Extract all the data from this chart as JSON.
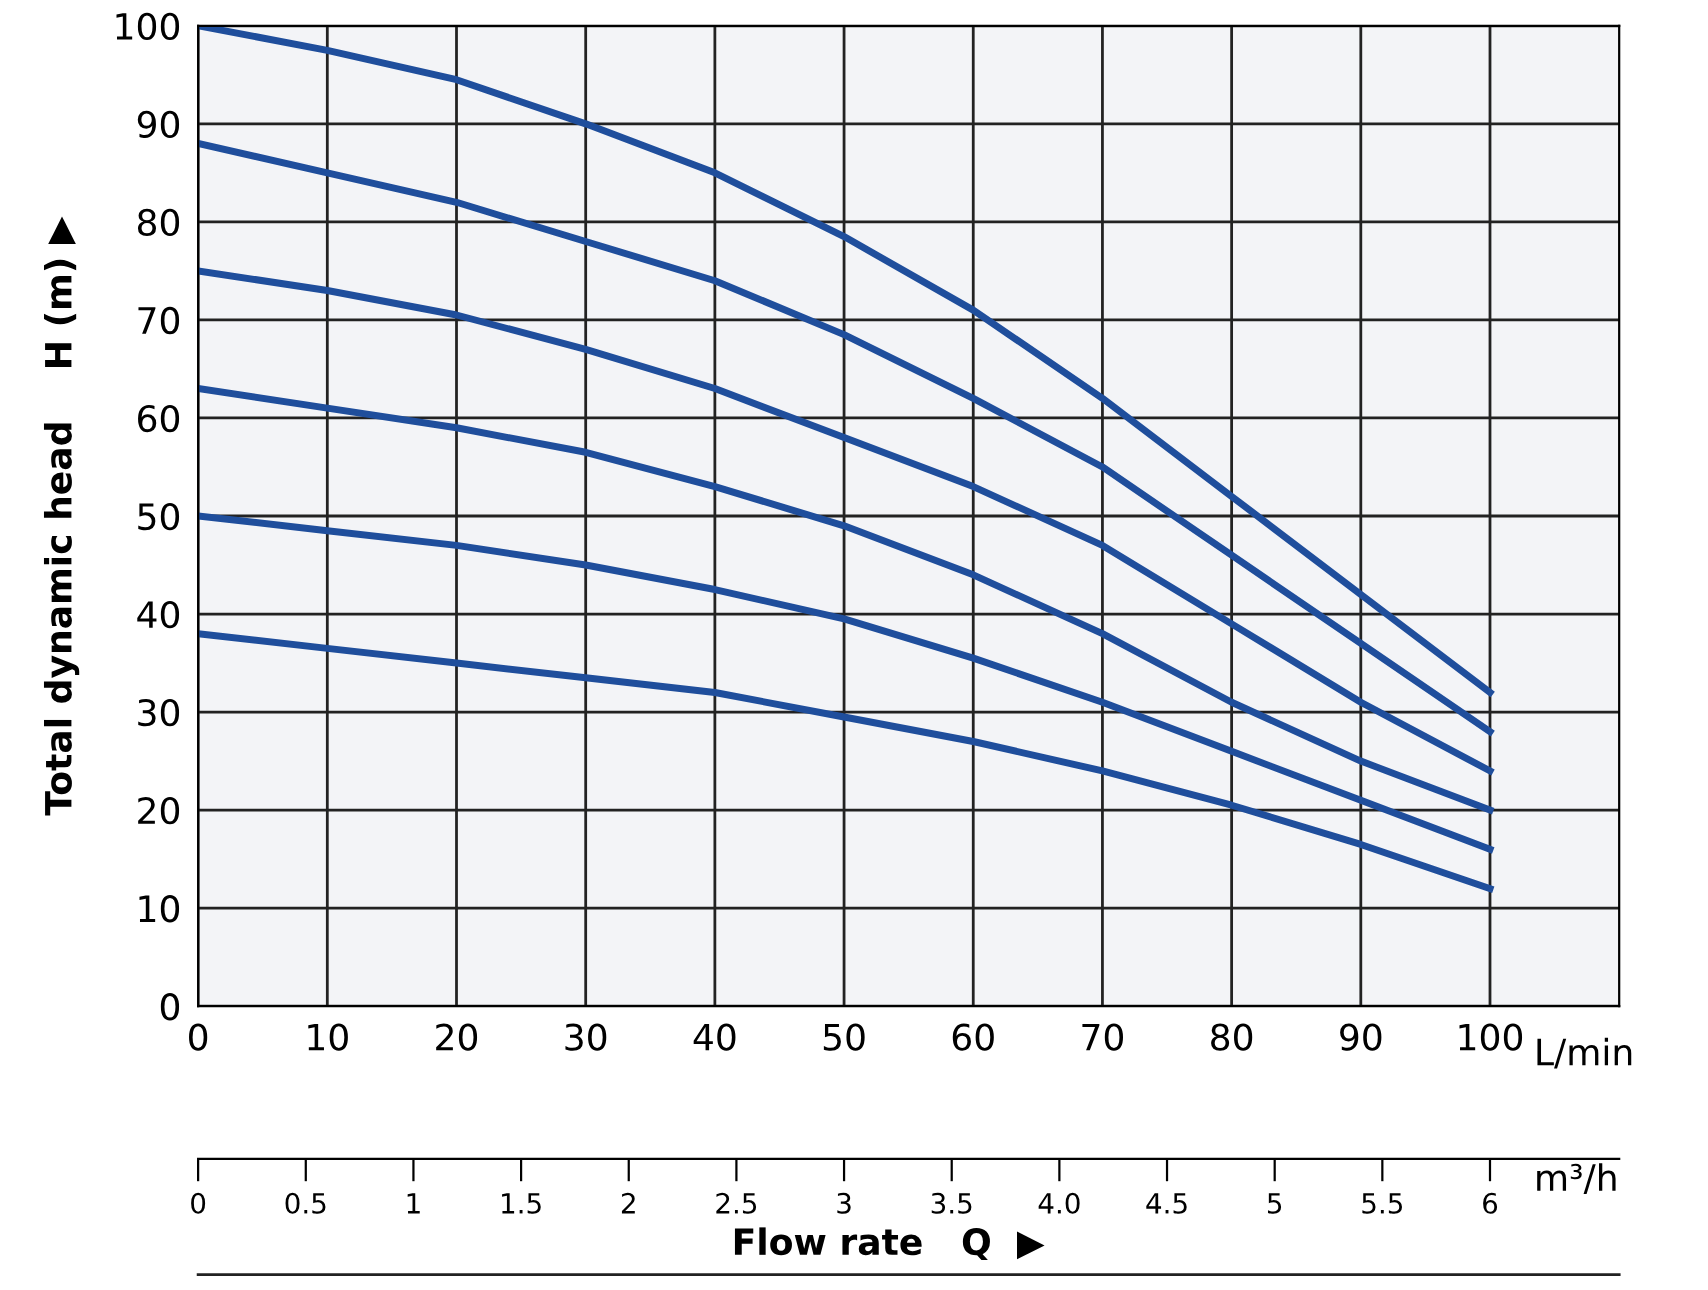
{
  "chart_data": {
    "type": "line",
    "xlabel": "L/min",
    "ylabel": "Total dynamic head    H (m) ▶",
    "x2label": "m³/h",
    "annotations": [
      "Flow rate   Q  ▶"
    ],
    "x": [
      0,
      10,
      20,
      30,
      40,
      50,
      60,
      70,
      80,
      90,
      100
    ],
    "series": [
      {
        "color": "#1f4e9c",
        "values": [
          100,
          97.5,
          94.5,
          90,
          85,
          78.5,
          71,
          62,
          52,
          42,
          32
        ]
      },
      {
        "color": "#1f4e9c",
        "values": [
          88,
          85,
          82,
          78,
          74,
          68.5,
          62,
          55,
          46,
          37,
          28
        ]
      },
      {
        "color": "#1f4e9c",
        "values": [
          75,
          73,
          70.5,
          67,
          63,
          58,
          53,
          47,
          39,
          31,
          24
        ]
      },
      {
        "color": "#1f4e9c",
        "values": [
          63,
          61,
          59,
          56.5,
          53,
          49,
          44,
          38,
          31,
          25,
          20
        ]
      },
      {
        "color": "#1f4e9c",
        "values": [
          50,
          48.5,
          47,
          45,
          42.5,
          39.5,
          35.5,
          31,
          26,
          21,
          16
        ]
      },
      {
        "color": "#1f4e9c",
        "values": [
          38,
          36.5,
          35,
          33.5,
          32,
          29.5,
          27,
          24,
          20.5,
          16.5,
          12
        ]
      }
    ],
    "xlim": [
      0,
      110
    ],
    "ylim": [
      0,
      100
    ],
    "xticks": [
      0,
      10,
      20,
      30,
      40,
      50,
      60,
      70,
      80,
      90,
      100
    ],
    "yticks": [
      0,
      10,
      20,
      30,
      40,
      50,
      60,
      70,
      80,
      90,
      100
    ],
    "x2lim": [
      0,
      6.6
    ],
    "x2ticks": [
      0,
      0.5,
      1,
      1.5,
      2,
      2.5,
      3,
      3.5,
      {
        "value": 4,
        "label": "4.0"
      },
      4.5,
      5,
      5.5,
      6
    ],
    "grid": true,
    "marker": "none",
    "line_style": "solid"
  }
}
